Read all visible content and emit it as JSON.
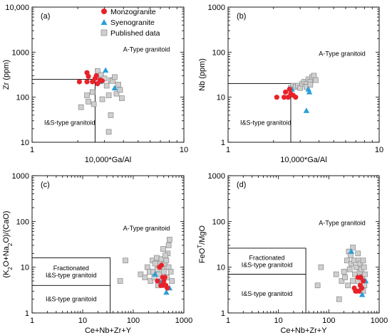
{
  "legend": {
    "monzo": "Monzogranite",
    "syeno": "Syenogranite",
    "published": "Published data"
  },
  "colors": {
    "monzogranite": "#e8222a",
    "syenogranite": "#2a9fd6",
    "published_fill": "#cfcfcf",
    "published_stroke": "#888888"
  },
  "chart_data": [
    {
      "type": "scatter",
      "panel": "(a)",
      "xlabel": "10,000*Ga/Al",
      "ylabel": "Zr (ppm)",
      "xscale": "log",
      "yscale": "log",
      "xlim": [
        1,
        10
      ],
      "ylim": [
        10,
        10000
      ],
      "xticks": [
        "1",
        "10"
      ],
      "yticks": [
        "10",
        "100",
        "1000",
        "10,000"
      ],
      "regions": [
        "A-Type granitoid",
        "I&S-type granitoid"
      ],
      "boundary": [
        [
          1,
          250
        ],
        [
          2.6,
          250
        ],
        [
          2.6,
          10
        ]
      ],
      "series": [
        {
          "name": "Monzogranite",
          "points": [
            [
              2.05,
              220
            ],
            [
              2.3,
              220
            ],
            [
              2.3,
              350
            ],
            [
              2.5,
              220
            ],
            [
              2.6,
              260
            ],
            [
              2.7,
              200
            ],
            [
              2.8,
              240
            ],
            [
              2.35,
              290
            ],
            [
              2.65,
              300
            ],
            [
              2.9,
              230
            ]
          ]
        },
        {
          "name": "Syenogranite",
          "points": [
            [
              2.65,
              300
            ],
            [
              3.05,
              395
            ],
            [
              3.5,
              160
            ],
            [
              2.8,
              220
            ]
          ]
        },
        {
          "name": "Published data",
          "points": [
            [
              2.1,
              60
            ],
            [
              2.3,
              110
            ],
            [
              2.5,
              130
            ],
            [
              2.7,
              380
            ],
            [
              2.85,
              310
            ],
            [
              2.9,
              90
            ],
            [
              3.0,
              260
            ],
            [
              3.1,
              180
            ],
            [
              3.2,
              110
            ],
            [
              3.3,
              240
            ],
            [
              3.4,
              230
            ],
            [
              3.5,
              280
            ],
            [
              3.6,
              120
            ],
            [
              3.8,
              145
            ],
            [
              3.9,
              95
            ],
            [
              3.3,
              40
            ],
            [
              3.2,
              17
            ],
            [
              2.55,
              70
            ],
            [
              2.35,
              80
            ],
            [
              3.7,
              190
            ]
          ]
        }
      ]
    },
    {
      "type": "scatter",
      "panel": "(b)",
      "xlabel": "10,000*Ga/Al",
      "ylabel": "Nb (ppm)",
      "xscale": "log",
      "yscale": "log",
      "xlim": [
        1,
        10
      ],
      "ylim": [
        1,
        1000
      ],
      "xticks": [
        "1",
        "10"
      ],
      "yticks": [
        "1",
        "10",
        "100",
        "1000"
      ],
      "regions": [
        "A-Type granitoid",
        "I&S-type granitoid"
      ],
      "boundary": [
        [
          1,
          20
        ],
        [
          2.6,
          20
        ],
        [
          2.6,
          1
        ]
      ],
      "series": [
        {
          "name": "Monzogranite",
          "points": [
            [
              2.1,
              10
            ],
            [
              2.35,
              10
            ],
            [
              2.4,
              13
            ],
            [
              2.5,
              10
            ],
            [
              2.55,
              15
            ],
            [
              2.7,
              11
            ],
            [
              2.8,
              10
            ],
            [
              2.6,
              12
            ]
          ]
        },
        {
          "name": "Syenogranite",
          "points": [
            [
              2.65,
              15
            ],
            [
              3.4,
              15
            ],
            [
              3.45,
              13
            ],
            [
              3.3,
              5
            ]
          ]
        },
        {
          "name": "Published data",
          "points": [
            [
              2.6,
              16
            ],
            [
              2.7,
              18
            ],
            [
              2.8,
              17
            ],
            [
              2.9,
              18
            ],
            [
              3.0,
              16
            ],
            [
              3.1,
              20
            ],
            [
              3.2,
              22
            ],
            [
              3.3,
              20
            ],
            [
              3.4,
              25
            ],
            [
              3.5,
              22
            ],
            [
              3.6,
              28
            ],
            [
              3.7,
              30
            ],
            [
              3.8,
              24
            ],
            [
              3.3,
              17
            ],
            [
              3.5,
              19
            ]
          ]
        }
      ]
    },
    {
      "type": "scatter",
      "panel": "(c)",
      "xlabel": "Ce+Nb+Zr+Y",
      "ylabel": "(K2O+Na2O)/(CaO)",
      "xscale": "log",
      "yscale": "log",
      "xlim": [
        1,
        1000
      ],
      "ylim": [
        1,
        1000
      ],
      "xticks": [
        "1",
        "10",
        "100",
        "1000"
      ],
      "yticks": [
        "1",
        "10",
        "100",
        "1000"
      ],
      "regions": [
        "A-Type granitoid",
        "Fractionated I&S-type granitoid",
        "I&S-type granitoid"
      ],
      "boundary": [
        [
          1,
          16
        ],
        [
          35,
          16
        ],
        [
          35,
          1
        ]
      ],
      "boundary2": [
        [
          1,
          4
        ],
        [
          35,
          4
        ]
      ],
      "series": [
        {
          "name": "Monzogranite",
          "points": [
            [
              330,
              10
            ],
            [
              360,
              11
            ],
            [
              380,
              6
            ],
            [
              400,
              5
            ],
            [
              420,
              6
            ],
            [
              440,
              4
            ],
            [
              350,
              4
            ],
            [
              470,
              3.5
            ],
            [
              300,
              5
            ],
            [
              380,
              4
            ]
          ]
        },
        {
          "name": "Syenogranite",
          "points": [
            [
              270,
              7
            ],
            [
              420,
              4
            ],
            [
              450,
              2.8
            ],
            [
              520,
              3.5
            ],
            [
              330,
              5
            ]
          ]
        },
        {
          "name": "Published data",
          "points": [
            [
              55,
              5
            ],
            [
              70,
              14
            ],
            [
              140,
              7
            ],
            [
              170,
              6
            ],
            [
              190,
              10
            ],
            [
              210,
              8
            ],
            [
              220,
              5
            ],
            [
              240,
              14
            ],
            [
              250,
              8
            ],
            [
              270,
              12
            ],
            [
              290,
              16
            ],
            [
              300,
              9
            ],
            [
              320,
              7
            ],
            [
              340,
              12
            ],
            [
              360,
              15
            ],
            [
              380,
              10
            ],
            [
              400,
              8
            ],
            [
              420,
              12
            ],
            [
              450,
              14
            ],
            [
              480,
              20
            ],
            [
              500,
              30
            ],
            [
              520,
              40
            ],
            [
              500,
              10
            ],
            [
              460,
              6
            ],
            [
              550,
              8
            ],
            [
              580,
              5
            ],
            [
              430,
              18
            ],
            [
              390,
              25
            ],
            [
              310,
              4
            ],
            [
              260,
              6
            ]
          ]
        }
      ]
    },
    {
      "type": "scatter",
      "panel": "(d)",
      "xlabel": "Ce+Nb+Zr+Y",
      "ylabel": "FeOT/MgO",
      "xscale": "log",
      "yscale": "log",
      "xlim": [
        1,
        1000
      ],
      "ylim": [
        1,
        1000
      ],
      "xticks": [
        "1",
        "10",
        "100",
        "1000"
      ],
      "yticks": [
        "1",
        "10",
        "100",
        "1000"
      ],
      "regions": [
        "A-Type granitoid",
        "Fractionated I&S-type granitoid",
        "I&S-type granitoid"
      ],
      "boundary": [
        [
          1,
          26
        ],
        [
          35,
          26
        ],
        [
          35,
          1
        ]
      ],
      "boundary2": [
        [
          1,
          7
        ],
        [
          35,
          7
        ]
      ],
      "series": [
        {
          "name": "Monzogranite",
          "points": [
            [
              320,
              3.5
            ],
            [
              340,
              3
            ],
            [
              380,
              6
            ],
            [
              420,
              4
            ],
            [
              450,
              3.5
            ],
            [
              480,
              5
            ],
            [
              360,
              3
            ],
            [
              400,
              3
            ],
            [
              430,
              6
            ]
          ]
        },
        {
          "name": "Syenogranite",
          "points": [
            [
              280,
              22
            ],
            [
              430,
              3.5
            ],
            [
              460,
              2.5
            ],
            [
              540,
              5
            ]
          ]
        },
        {
          "name": "Published data",
          "points": [
            [
              60,
              4
            ],
            [
              70,
              10
            ],
            [
              140,
              7
            ],
            [
              160,
              2
            ],
            [
              180,
              5
            ],
            [
              200,
              8
            ],
            [
              210,
              6
            ],
            [
              230,
              14
            ],
            [
              240,
              4
            ],
            [
              250,
              22
            ],
            [
              260,
              9
            ],
            [
              280,
              12
            ],
            [
              300,
              27
            ],
            [
              320,
              14
            ],
            [
              330,
              7
            ],
            [
              350,
              10
            ],
            [
              370,
              5
            ],
            [
              390,
              14
            ],
            [
              410,
              8
            ],
            [
              420,
              12
            ],
            [
              440,
              9
            ],
            [
              460,
              6
            ],
            [
              480,
              14
            ],
            [
              500,
              10
            ],
            [
              520,
              7
            ],
            [
              480,
              3
            ],
            [
              300,
              5
            ],
            [
              270,
              18
            ],
            [
              380,
              20
            ],
            [
              510,
              4
            ]
          ]
        }
      ]
    }
  ]
}
